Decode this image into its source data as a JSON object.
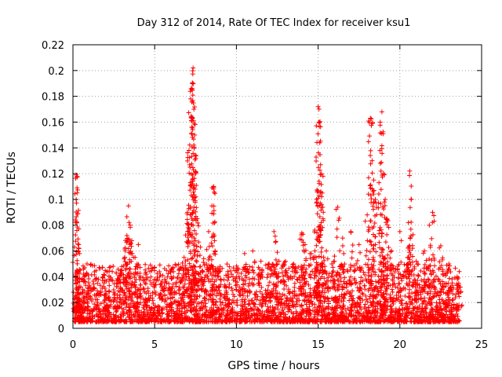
{
  "chart_data": {
    "type": "scatter",
    "title": "Day 312 of 2014, Rate Of TEC Index for receiver ksu1",
    "xlabel": "GPS time / hours",
    "ylabel": "ROTI / TECUs",
    "xlim": [
      0,
      25
    ],
    "ylim": [
      0,
      0.22
    ],
    "xticks": [
      "0",
      "5",
      "10",
      "15",
      "20",
      "25"
    ],
    "yticks": [
      "0",
      "0.02",
      "0.04",
      "0.06",
      "0.08",
      "0.1",
      "0.12",
      "0.14",
      "0.16",
      "0.18",
      "0.2",
      "0.22"
    ],
    "grid": true,
    "marker": "+",
    "color": "#ff0000",
    "series": [
      {
        "x": [
          0.1,
          0.2,
          0.25,
          0.3,
          0.35,
          0.4,
          0.45,
          0.5,
          0.6,
          1.0,
          1.5,
          2.0,
          2.5,
          3.0,
          3.2,
          3.3,
          3.4,
          3.5,
          3.6,
          3.8,
          4.0,
          4.5,
          5.0,
          5.5,
          6.0,
          6.5,
          6.8,
          7.0,
          7.1,
          7.2,
          7.3,
          7.35,
          7.4,
          7.45,
          7.5,
          7.6,
          7.8,
          8.0,
          8.3,
          8.5,
          8.6,
          8.7,
          9.0,
          9.5,
          10.0,
          10.5,
          11.0,
          11.5,
          12.0,
          12.3,
          12.5,
          13.0,
          13.5,
          14.0,
          14.2,
          14.5,
          14.8,
          14.9,
          15.0,
          15.05,
          15.1,
          15.2,
          15.3,
          15.5,
          16.0,
          16.2,
          16.5,
          17.0,
          17.5,
          18.0,
          18.2,
          18.3,
          18.4,
          18.5,
          18.8,
          18.9,
          19.0,
          19.1,
          19.2,
          19.5,
          20.0,
          20.5,
          20.6,
          20.7,
          21.0,
          21.5,
          21.8,
          22.0,
          22.5,
          23.0,
          23.5,
          23.6,
          23.7
        ],
        "y": [
          0.063,
          0.119,
          0.109,
          0.089,
          0.065,
          0.058,
          0.045,
          0.038,
          0.03,
          0.025,
          0.035,
          0.026,
          0.028,
          0.045,
          0.06,
          0.072,
          0.095,
          0.08,
          0.068,
          0.055,
          0.065,
          0.042,
          0.038,
          0.041,
          0.04,
          0.045,
          0.055,
          0.09,
          0.138,
          0.178,
          0.19,
          0.202,
          0.17,
          0.15,
          0.12,
          0.085,
          0.063,
          0.054,
          0.075,
          0.095,
          0.11,
          0.06,
          0.048,
          0.042,
          0.045,
          0.058,
          0.06,
          0.052,
          0.05,
          0.075,
          0.059,
          0.052,
          0.05,
          0.074,
          0.065,
          0.058,
          0.06,
          0.1,
          0.172,
          0.16,
          0.144,
          0.12,
          0.085,
          0.06,
          0.056,
          0.094,
          0.07,
          0.075,
          0.065,
          0.088,
          0.163,
          0.13,
          0.115,
          0.1,
          0.16,
          0.168,
          0.12,
          0.1,
          0.085,
          0.06,
          0.075,
          0.055,
          0.122,
          0.1,
          0.052,
          0.06,
          0.08,
          0.09,
          0.064,
          0.05,
          0.04,
          0.035,
          0.032
        ]
      }
    ]
  }
}
